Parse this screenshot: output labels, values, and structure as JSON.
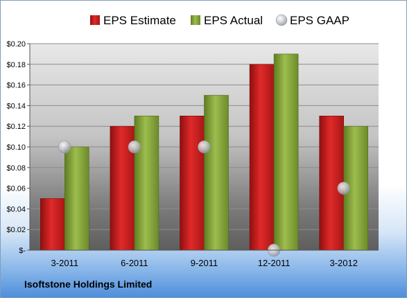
{
  "company": "Isoftstone Holdings Limited",
  "colors": {
    "estimate": "#cc1f1f",
    "actual": "#8aab3c",
    "gaap": "#b8bcc4"
  },
  "chart_data": {
    "type": "bar",
    "title": "",
    "xlabel": "",
    "ylabel": "",
    "categories": [
      "3-2011",
      "6-2011",
      "9-2011",
      "12-2011",
      "3-2012"
    ],
    "series": [
      {
        "name": "EPS Estimate",
        "kind": "bar",
        "values": [
          0.05,
          0.12,
          0.13,
          0.18,
          0.13
        ]
      },
      {
        "name": "EPS Actual",
        "kind": "bar",
        "values": [
          0.1,
          0.13,
          0.15,
          0.19,
          0.12
        ]
      },
      {
        "name": "EPS GAAP",
        "kind": "marker",
        "values": [
          0.1,
          0.1,
          0.1,
          0.0,
          0.06
        ]
      }
    ],
    "ylim": [
      0,
      0.2
    ],
    "yticks": [
      "$-",
      "$0.02",
      "$0.04",
      "$0.06",
      "$0.08",
      "$0.10",
      "$0.12",
      "$0.14",
      "$0.16",
      "$0.18",
      "$0.20"
    ],
    "grid": true,
    "legend_position": "top"
  }
}
